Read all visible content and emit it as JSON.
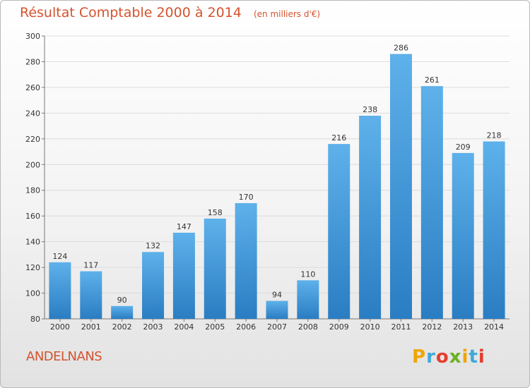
{
  "chart_data": {
    "type": "bar",
    "title": "Résultat Comptable 2000 à 2014",
    "subtitle": "(en milliers d'€)",
    "categories": [
      "2000",
      "2001",
      "2002",
      "2003",
      "2004",
      "2005",
      "2006",
      "2007",
      "2008",
      "2009",
      "2010",
      "2011",
      "2012",
      "2013",
      "2014"
    ],
    "values": [
      124,
      117,
      90,
      132,
      147,
      158,
      170,
      94,
      110,
      216,
      238,
      286,
      261,
      209,
      218
    ],
    "ylim": [
      80,
      300
    ],
    "yticks": [
      80,
      100,
      120,
      140,
      160,
      180,
      200,
      220,
      240,
      260,
      280,
      300
    ],
    "xlabel": "",
    "ylabel": "",
    "grid": true
  },
  "commune": "ANDELNANS",
  "logo": {
    "letters": [
      "P",
      "r",
      "o",
      "x",
      "i",
      "t",
      "i"
    ],
    "colors": [
      "#f0a500",
      "#3fa9d8",
      "#e53d2f",
      "#6ab023",
      "#f0a500",
      "#3fa9d8",
      "#e53d2f"
    ]
  },
  "colors": {
    "bar_light": "#5eb1ea",
    "bar_dark": "#2a7dc2",
    "title": "#d4532f",
    "grid": "#dcdcdc"
  }
}
